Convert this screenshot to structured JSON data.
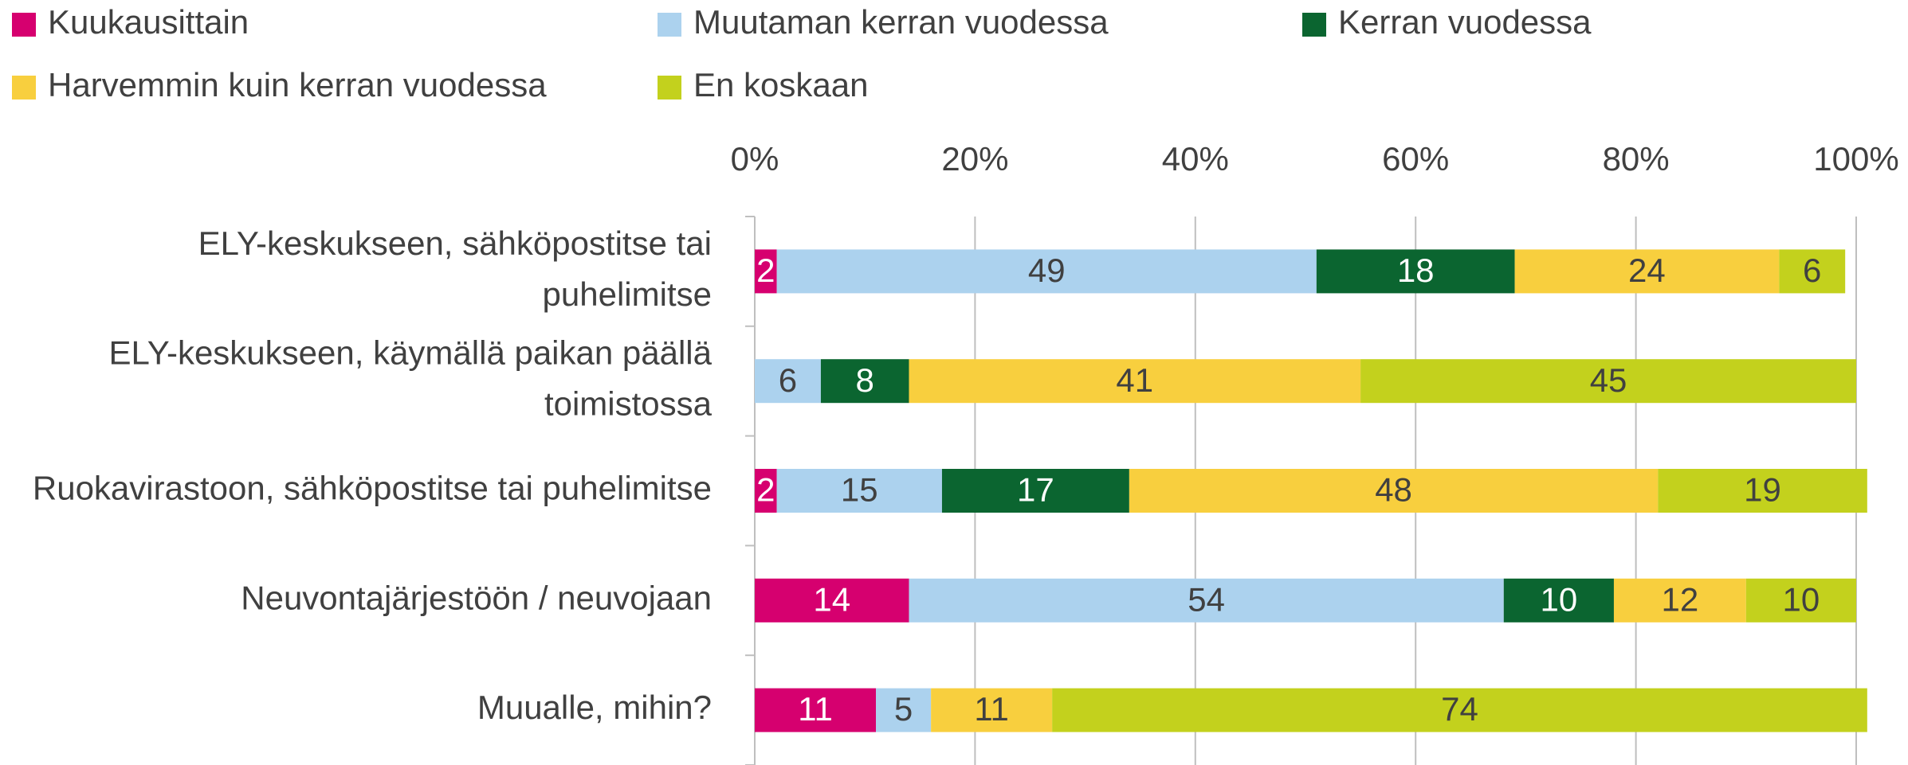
{
  "chart_data": {
    "type": "stacked_barh",
    "categories": [
      "ELY-keskukseen, sähköpostitse tai puhelimitse",
      "ELY-keskukseen, käymällä paikan päällä toimistossa",
      "Ruokavirastoon, sähköpostitse tai puhelimitse",
      "Neuvontajärjestöön / neuvojaan",
      "Muualle, mihin?"
    ],
    "series": [
      {
        "name": "Kuukausittain",
        "color": "#d6006f",
        "values": [
          2,
          null,
          2,
          14,
          11
        ]
      },
      {
        "name": "Muutaman kerran vuodessa",
        "color": "#acd2ee",
        "values": [
          49,
          6,
          15,
          54,
          5
        ]
      },
      {
        "name": "Kerran vuodessa",
        "color": "#0b6530",
        "values": [
          18,
          8,
          17,
          10,
          null
        ]
      },
      {
        "name": "Harvemmin kuin kerran vuodessa",
        "color": "#f8cf3e",
        "values": [
          24,
          41,
          48,
          12,
          11
        ]
      },
      {
        "name": "En koskaan",
        "color": "#c3d11d",
        "values": [
          6,
          45,
          19,
          10,
          74
        ]
      }
    ],
    "xlim": [
      0,
      100
    ],
    "xticks": [
      {
        "value": 0,
        "label": "0%"
      },
      {
        "value": 20,
        "label": "20%"
      },
      {
        "value": 40,
        "label": "40%"
      },
      {
        "value": 60,
        "label": "60%"
      },
      {
        "value": 80,
        "label": "80%"
      },
      {
        "value": 100,
        "label": "100%"
      }
    ],
    "grid": true,
    "legend": "top"
  }
}
